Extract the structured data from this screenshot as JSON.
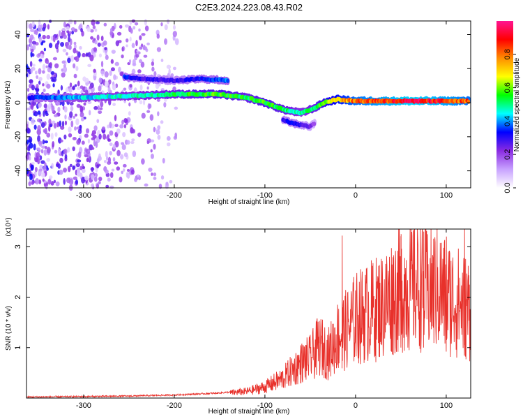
{
  "title": "C2E3.2024.223.08.43.R02",
  "chart_data": [
    {
      "type": "heatmap",
      "xlabel": "Height of straight line (km)",
      "ylabel": "Frequency (Hz)",
      "xlim": [
        -363,
        127
      ],
      "ylim": [
        -50,
        48
      ],
      "x_ticks": [
        -300,
        -200,
        -100,
        0,
        100
      ],
      "y_ticks": [
        -40,
        -20,
        0,
        20,
        40
      ],
      "colorbar": {
        "label": "Normalized spectral amplitude",
        "range": [
          0,
          1
        ],
        "ticks": [
          0.0,
          0.2,
          0.4,
          0.6,
          0.8
        ],
        "tick_labels": [
          "0.0",
          "0.2",
          "0.4",
          "0.6",
          "0.8"
        ],
        "colormap": [
          "#ffffff",
          "#c8a2ff",
          "#8a2be2",
          "#0000ff",
          "#00ffff",
          "#00ff00",
          "#ffff00",
          "#ff8c00",
          "#ff0000",
          "#ff1493"
        ]
      },
      "ridges": [
        {
          "x": [
            -360,
            -330,
            -300,
            -250,
            -200,
            -150,
            -120,
            -100,
            -80,
            -60,
            -45,
            -35,
            -20,
            0,
            30,
            60,
            100,
            125
          ],
          "y": [
            3,
            3,
            3,
            4,
            5,
            5,
            3,
            0,
            -4,
            -6,
            -3,
            0,
            2,
            1,
            1,
            1,
            1,
            1
          ],
          "amplitude": [
            0.35,
            0.4,
            0.45,
            0.5,
            0.55,
            0.6,
            0.55,
            0.6,
            0.55,
            0.5,
            0.55,
            0.65,
            0.75,
            0.85,
            0.9,
            0.95,
            0.9,
            0.85
          ]
        },
        {
          "x": [
            -255,
            -230,
            -200,
            -170,
            -140
          ],
          "y": [
            15,
            14,
            13,
            14,
            13
          ],
          "amplitude": [
            0.35,
            0.3,
            0.3,
            0.35,
            0.4
          ]
        },
        {
          "x": [
            -80,
            -70,
            -60,
            -50,
            -45
          ],
          "y": [
            -10,
            -12,
            -13,
            -14,
            -12
          ],
          "amplitude": [
            0.3,
            0.35,
            0.3,
            0.25,
            0.2
          ]
        }
      ],
      "noise_region_x": [
        -363,
        -195
      ],
      "noise_amplitude": [
        0.05,
        0.35
      ]
    },
    {
      "type": "line",
      "xlabel": "Height of straight line (km)",
      "ylabel": "SNR (10 * v/v)",
      "y_multiplier_label": "(x10⁴)",
      "y_multiplier": 10000,
      "xlim": [
        -363,
        127
      ],
      "ylim": [
        0,
        3.35
      ],
      "x_ticks": [
        -300,
        -200,
        -100,
        0,
        100
      ],
      "y_ticks": [
        1,
        2,
        3
      ],
      "color": "#e8312b",
      "envelope": {
        "x": [
          -363,
          -300,
          -250,
          -200,
          -150,
          -120,
          -100,
          -80,
          -60,
          -50,
          -40,
          -30,
          -20,
          -10,
          0,
          10,
          20,
          30,
          40,
          50,
          60,
          70,
          80,
          90,
          100,
          110,
          120,
          127
        ],
        "y": [
          0.02,
          0.03,
          0.04,
          0.06,
          0.1,
          0.15,
          0.25,
          0.45,
          0.8,
          0.9,
          1.2,
          1.0,
          1.4,
          1.55,
          1.8,
          1.9,
          2.0,
          2.1,
          2.3,
          2.5,
          2.5,
          2.6,
          2.4,
          2.5,
          2.3,
          2.2,
          2.1,
          2.0
        ]
      },
      "spikes": [
        {
          "x": -15,
          "y": 3.22
        },
        {
          "x": 50,
          "y": 3.25
        },
        {
          "x": 75,
          "y": 3.3
        },
        {
          "x": 100,
          "y": 3.2
        },
        {
          "x": 120,
          "y": 3.35
        }
      ]
    }
  ]
}
